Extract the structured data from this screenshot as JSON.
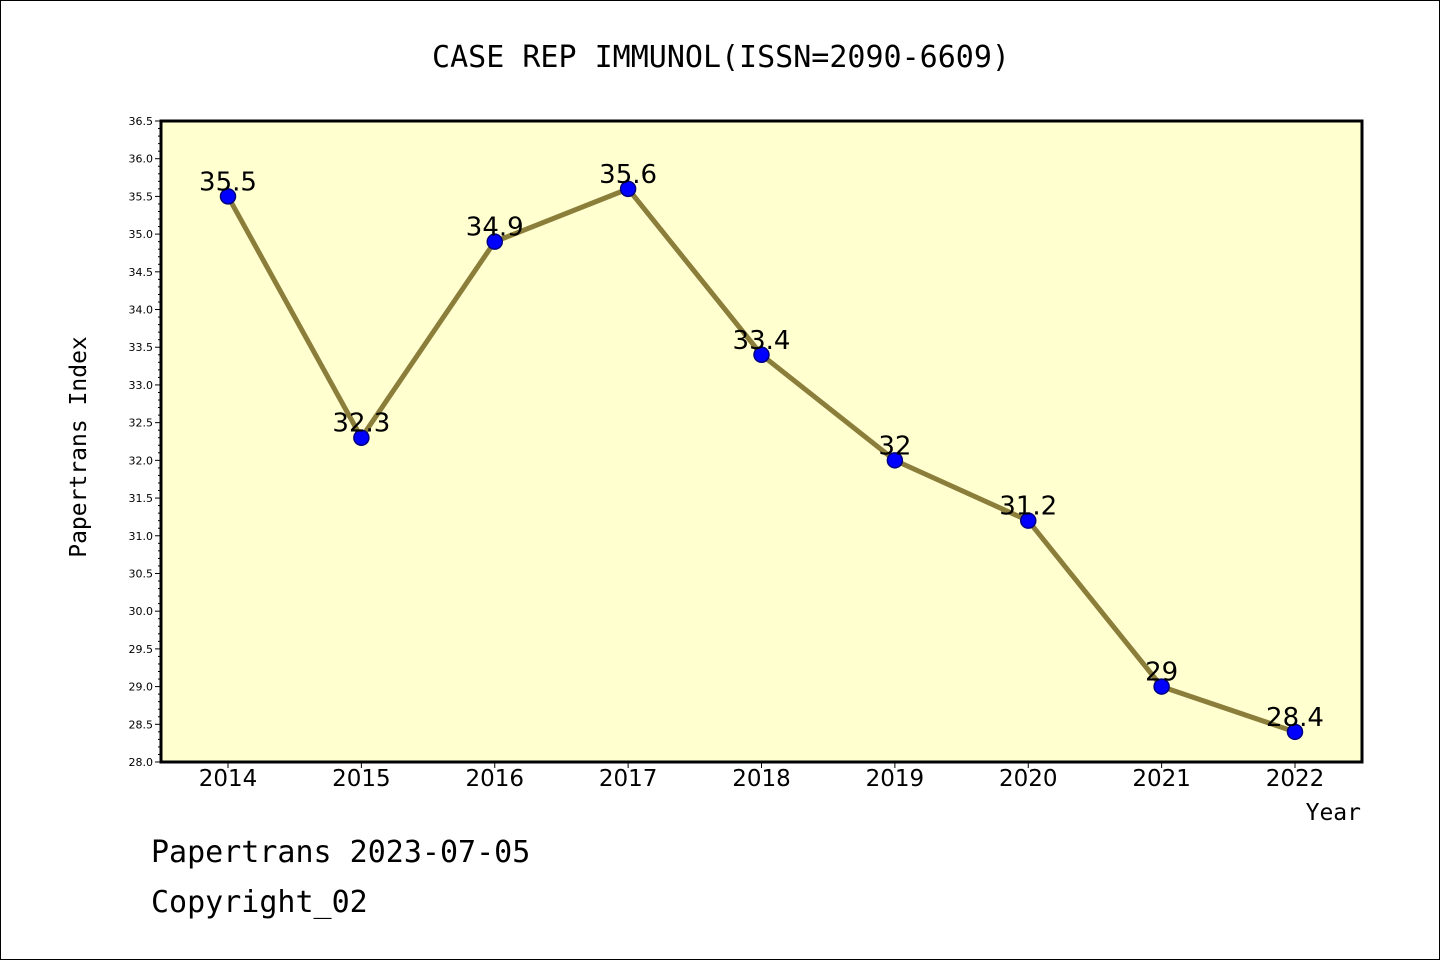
{
  "chart_data": {
    "type": "line",
    "title": "CASE REP IMMUNOL(ISSN=2090-6609)",
    "xlabel": "Year",
    "ylabel": "Papertrans Index",
    "categories": [
      "2014",
      "2015",
      "2016",
      "2017",
      "2018",
      "2019",
      "2020",
      "2021",
      "2022"
    ],
    "values": [
      35.5,
      32.3,
      34.9,
      35.6,
      33.4,
      32,
      31.2,
      29,
      28.4
    ],
    "data_labels": [
      "35.5",
      "32.3",
      "34.9",
      "35.6",
      "33.4",
      "32",
      "31.2",
      "29",
      "28.4"
    ],
    "ylim": [
      28.0,
      36.5
    ],
    "yticks": [
      "28.0",
      "28.5",
      "29.0",
      "29.5",
      "30.0",
      "30.5",
      "31.0",
      "31.5",
      "32.0",
      "32.5",
      "33.0",
      "33.5",
      "34.0",
      "34.5",
      "35.0",
      "35.5",
      "36.0",
      "36.5"
    ],
    "grid": false,
    "colors": {
      "plot_background": "#ffffd0",
      "line": "#8b7d3a",
      "marker": "#0000ff",
      "marker_edge": "#000080"
    }
  },
  "footer": {
    "line1": "Papertrans 2023-07-05",
    "line2": "Copyright_02"
  }
}
